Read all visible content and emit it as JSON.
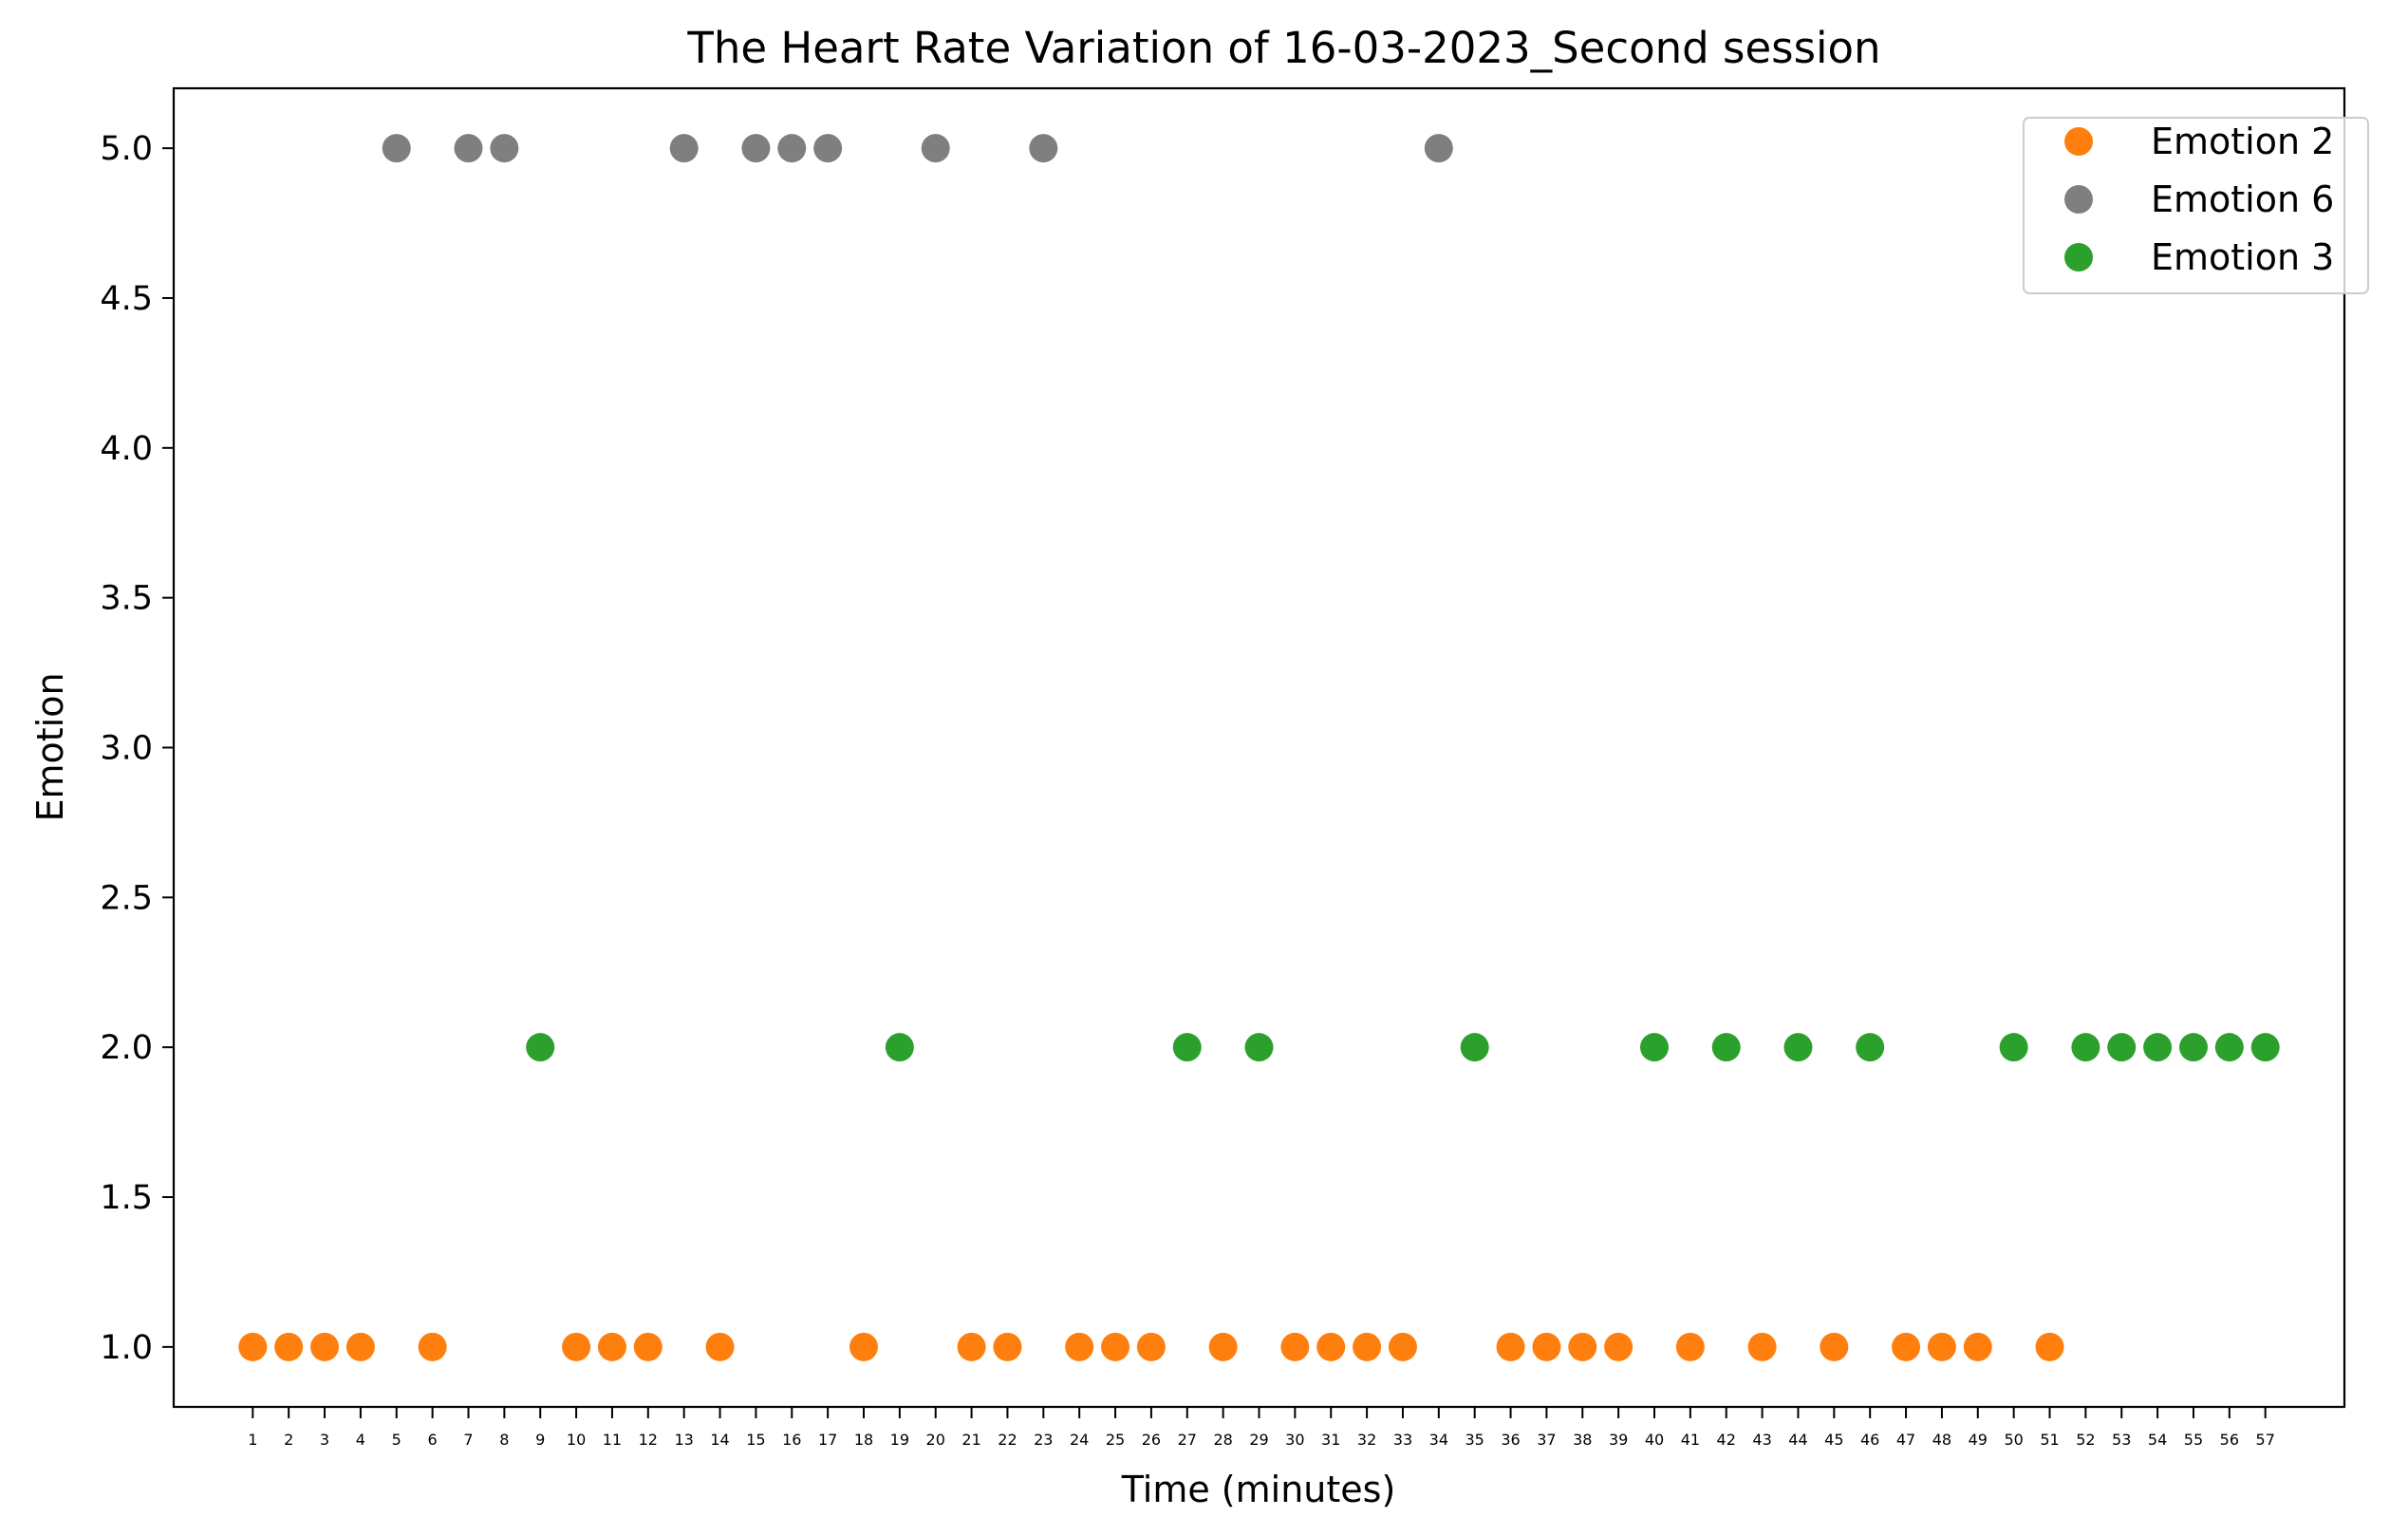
{
  "chart_data": {
    "type": "scatter",
    "title": "The Heart Rate Variation of 16-03-2023_Second session",
    "xlabel": "Time (minutes)",
    "ylabel": "Emotion",
    "xlim": [
      -1.2,
      59.2
    ],
    "ylim": [
      0.8,
      5.2
    ],
    "x_ticks": [
      1,
      2,
      3,
      4,
      5,
      6,
      7,
      8,
      9,
      10,
      11,
      12,
      13,
      14,
      15,
      16,
      17,
      18,
      19,
      20,
      21,
      22,
      23,
      24,
      25,
      26,
      27,
      28,
      29,
      30,
      31,
      32,
      33,
      34,
      35,
      36,
      37,
      38,
      39,
      40,
      41,
      42,
      43,
      44,
      45,
      46,
      47,
      48,
      49,
      50,
      51,
      52,
      53,
      54,
      55,
      56,
      57
    ],
    "y_ticks": [
      {
        "value": 1.0,
        "label": "1.0"
      },
      {
        "value": 1.5,
        "label": "1.5"
      },
      {
        "value": 2.0,
        "label": "2.0"
      },
      {
        "value": 2.5,
        "label": "2.5"
      },
      {
        "value": 3.0,
        "label": "3.0"
      },
      {
        "value": 3.5,
        "label": "3.5"
      },
      {
        "value": 4.0,
        "label": "4.0"
      },
      {
        "value": 4.5,
        "label": "4.5"
      },
      {
        "value": 5.0,
        "label": "5.0"
      }
    ],
    "grid": false,
    "legend_position": "top-right",
    "series": [
      {
        "name": "Emotion 2",
        "color": "#ff7f0e",
        "x": [
          1,
          2,
          3,
          4,
          6,
          10,
          11,
          12,
          14,
          18,
          21,
          22,
          24,
          25,
          26,
          28,
          30,
          31,
          32,
          33,
          36,
          37,
          38,
          39,
          41,
          43,
          45,
          47,
          48,
          49,
          51
        ],
        "y": [
          1,
          1,
          1,
          1,
          1,
          1,
          1,
          1,
          1,
          1,
          1,
          1,
          1,
          1,
          1,
          1,
          1,
          1,
          1,
          1,
          1,
          1,
          1,
          1,
          1,
          1,
          1,
          1,
          1,
          1,
          1
        ]
      },
      {
        "name": "Emotion 6",
        "color": "#7f7f7f",
        "x": [
          5,
          7,
          8,
          13,
          15,
          16,
          17,
          20,
          23,
          34
        ],
        "y": [
          5,
          5,
          5,
          5,
          5,
          5,
          5,
          5,
          5,
          5
        ]
      },
      {
        "name": "Emotion 3",
        "color": "#2ca02c",
        "x": [
          9,
          19,
          27,
          29,
          35,
          40,
          42,
          44,
          46,
          50,
          52,
          53,
          54,
          55,
          56,
          57
        ],
        "y": [
          2,
          2,
          2,
          2,
          2,
          2,
          2,
          2,
          2,
          2,
          2,
          2,
          2,
          2,
          2,
          2
        ]
      }
    ]
  }
}
